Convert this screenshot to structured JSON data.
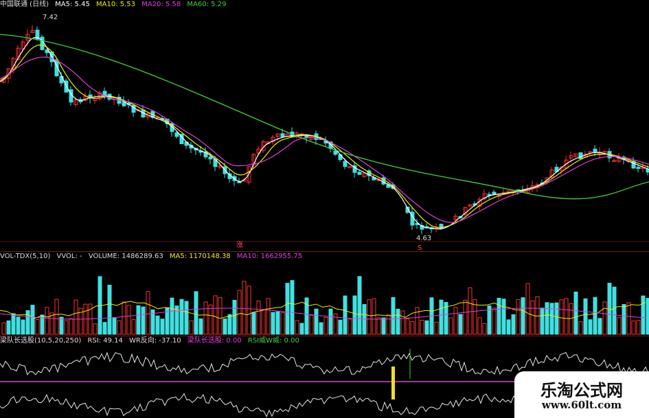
{
  "price_panel": {
    "title": "中国联通 (日线)",
    "ma5_label": "MA5: 5.45",
    "ma10_label": "MA10: 5.53",
    "ma20_label": "MA20: 5.58",
    "ma60_label": "MA60: 5.29",
    "high_marker": "7.42",
    "low_marker": "4.63",
    "marker_zhang": "涨",
    "marker_s": "S",
    "colors": {
      "ma5": "#ffffff",
      "ma10": "#f0f000",
      "ma20": "#e040e0",
      "ma60": "#40d040",
      "up": "#ff3030",
      "down": "#40e0e0"
    }
  },
  "volume_panel": {
    "indicator_label": "VOL-TDX(5,10)",
    "vvol_label": "VVOL: -",
    "volume_label": "VOLUME: 1486289.63",
    "ma5_label": "MA5: 1170148.38",
    "ma10_label": "MA10: 1662955.75"
  },
  "rsi_panel": {
    "indicator_label": "梁队长选股(10,5,20,250)",
    "rsi_label": "RSI: 49.14",
    "wr_label": "WR反向: -37.10",
    "signal_label": "梁队长选股: 0.00",
    "rsi_wr_label": "RSI威W威: 0.00"
  },
  "watermark": {
    "name": "乐淘公式网",
    "url": "www.60lt.com"
  }
}
